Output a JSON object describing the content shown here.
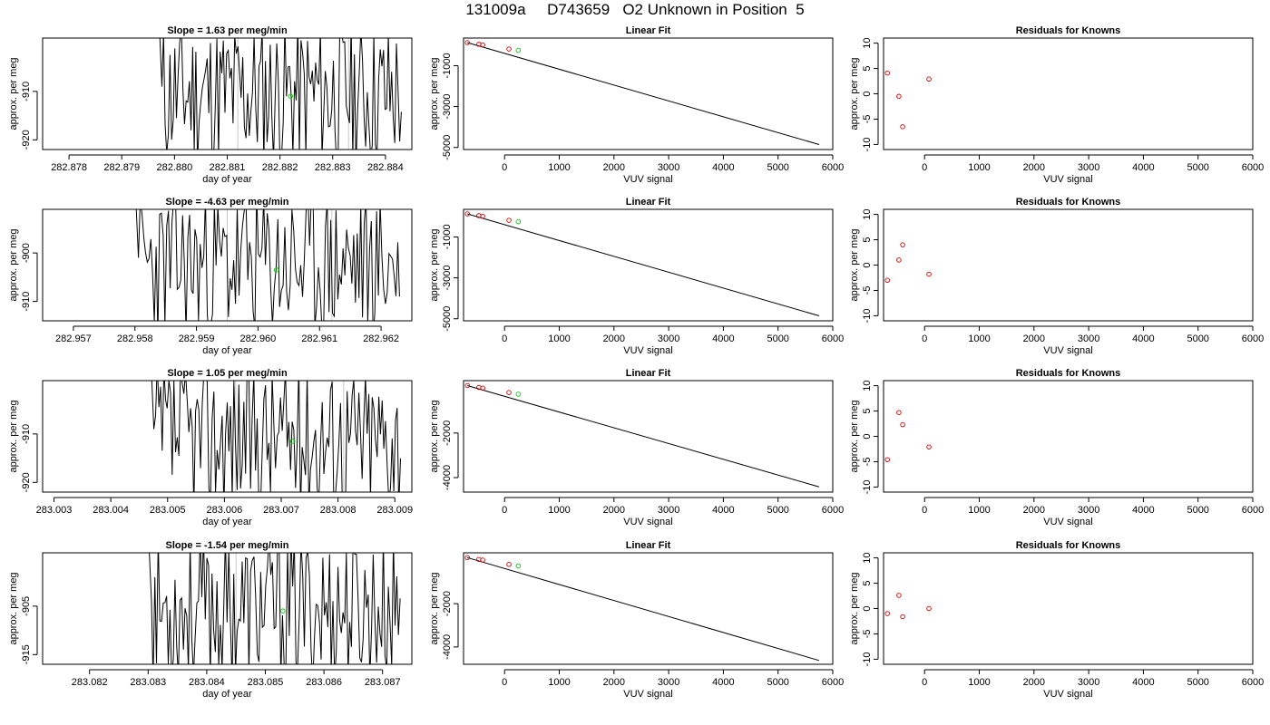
{
  "figure_title": "131009a     D743659   O2 Unknown in Position  5",
  "chart_data": [
    {
      "type": "line",
      "title": "Slope =  1.63  per meg/min",
      "xlabel": "day of year",
      "ylabel": "approx. per meg",
      "xlim": [
        282.8775,
        282.8845
      ],
      "ylim": [
        -922,
        -899
      ],
      "xticks": [
        282.878,
        282.879,
        282.88,
        282.881,
        282.882,
        282.883,
        282.884
      ],
      "xtick_labels": [
        "282.878",
        "282.879",
        "282.880",
        "282.881",
        "282.882",
        "282.883",
        "282.884"
      ],
      "yticks": [
        -910,
        -920
      ],
      "ytick_labels": [
        "-910",
        "-920"
      ],
      "data_start": 282.8797,
      "data_end": 282.8843,
      "mean_point": {
        "x": 282.8822,
        "y": -911
      },
      "series_color": "#000000",
      "mean_color": "#00cc00",
      "vlines": [
        282.8812,
        282.8833
      ],
      "seed": 11,
      "band": [
        -922,
        -899
      ]
    },
    {
      "type": "scatter",
      "title": "Linear Fit",
      "xlabel": "VUV signal",
      "ylabel": "approx. per meg",
      "xlim": [
        -750,
        6000
      ],
      "ylim": [
        -5100,
        350
      ],
      "xticks": [
        0,
        1000,
        2000,
        3000,
        4000,
        5000,
        6000
      ],
      "xtick_labels": [
        "0",
        "1000",
        "2000",
        "3000",
        "4000",
        "5000",
        "6000"
      ],
      "yticks": [
        -1000,
        -3000,
        -5000
      ],
      "ytick_labels": [
        "-1000",
        "-3000",
        "-5000"
      ],
      "points": [
        {
          "x": -680,
          "y": 127
        },
        {
          "x": -470,
          "y": 43
        },
        {
          "x": -400,
          "y": 14
        },
        {
          "x": 80,
          "y": -185
        },
        {
          "x": 250,
          "y": -255
        }
      ],
      "point_colors": [
        "#cc0000",
        "#cc0000",
        "#cc0000",
        "#cc0000",
        "#00cc00"
      ],
      "fit_line": {
        "x1": -680,
        "y1": 127,
        "x2": 5750,
        "y2": -4855
      }
    },
    {
      "type": "scatter",
      "title": "Residuals for Knowns",
      "xlabel": "VUV signal",
      "ylabel": "approx. per meg",
      "xlim": [
        -750,
        6000
      ],
      "ylim": [
        -11,
        11
      ],
      "xticks": [
        0,
        1000,
        2000,
        3000,
        4000,
        5000,
        6000
      ],
      "xtick_labels": [
        "0",
        "1000",
        "2000",
        "3000",
        "4000",
        "5000",
        "6000"
      ],
      "yticks": [
        10,
        5,
        0,
        -5,
        -10
      ],
      "ytick_labels": [
        "10",
        "5",
        "0",
        "-5",
        "-10"
      ],
      "points": [
        {
          "x": -680,
          "y": 4.1
        },
        {
          "x": -470,
          "y": -0.5
        },
        {
          "x": -400,
          "y": -6.5
        },
        {
          "x": 80,
          "y": 2.9
        }
      ],
      "point_colors": [
        "#cc0000",
        "#cc0000",
        "#cc0000",
        "#cc0000"
      ]
    },
    {
      "type": "line",
      "title": "Slope =  -4.63  per meg/min",
      "xlabel": "day of year",
      "ylabel": "approx. per meg",
      "xlim": [
        282.9565,
        282.9625
      ],
      "ylim": [
        -914,
        -891
      ],
      "xticks": [
        282.957,
        282.958,
        282.959,
        282.96,
        282.961,
        282.962
      ],
      "xtick_labels": [
        "282.957",
        "282.958",
        "282.959",
        "282.960",
        "282.961",
        "282.962"
      ],
      "yticks": [
        -900,
        -910
      ],
      "ytick_labels": [
        "-900",
        "-910"
      ],
      "data_start": 282.958,
      "data_end": 282.9623,
      "mean_point": {
        "x": 282.9603,
        "y": -903.5
      },
      "series_color": "#000000",
      "mean_color": "#00cc00",
      "vlines": [
        282.9595,
        282.9612
      ],
      "seed": 23,
      "band": [
        -914,
        -891
      ]
    },
    {
      "type": "scatter",
      "title": "Linear Fit",
      "xlabel": "VUV signal",
      "ylabel": "approx. per meg",
      "xlim": [
        -750,
        6000
      ],
      "ylim": [
        -5100,
        350
      ],
      "xticks": [
        0,
        1000,
        2000,
        3000,
        4000,
        5000,
        6000
      ],
      "xtick_labels": [
        "0",
        "1000",
        "2000",
        "3000",
        "4000",
        "5000",
        "6000"
      ],
      "yticks": [
        -1000,
        -3000,
        -5000
      ],
      "ytick_labels": [
        "-1000",
        "-3000",
        "-5000"
      ],
      "points": [
        {
          "x": -680,
          "y": 127
        },
        {
          "x": -470,
          "y": 43
        },
        {
          "x": -400,
          "y": 14
        },
        {
          "x": 80,
          "y": -185
        },
        {
          "x": 250,
          "y": -255
        }
      ],
      "point_colors": [
        "#cc0000",
        "#cc0000",
        "#cc0000",
        "#cc0000",
        "#00cc00"
      ],
      "fit_line": {
        "x1": -680,
        "y1": 127,
        "x2": 5750,
        "y2": -4855
      }
    },
    {
      "type": "scatter",
      "title": "Residuals for Knowns",
      "xlabel": "VUV signal",
      "ylabel": "approx. per meg",
      "xlim": [
        -750,
        6000
      ],
      "ylim": [
        -11,
        11
      ],
      "xticks": [
        0,
        1000,
        2000,
        3000,
        4000,
        5000,
        6000
      ],
      "xtick_labels": [
        "0",
        "1000",
        "2000",
        "3000",
        "4000",
        "5000",
        "6000"
      ],
      "yticks": [
        10,
        5,
        0,
        -5,
        -10
      ],
      "ytick_labels": [
        "10",
        "5",
        "0",
        "-5",
        "-10"
      ],
      "points": [
        {
          "x": -680,
          "y": -3.0
        },
        {
          "x": -470,
          "y": 1.0
        },
        {
          "x": -400,
          "y": 4.0
        },
        {
          "x": 80,
          "y": -1.8
        }
      ],
      "point_colors": [
        "#cc0000",
        "#cc0000",
        "#cc0000",
        "#cc0000"
      ]
    },
    {
      "type": "line",
      "title": "Slope =  1.05  per meg/min",
      "xlabel": "day of year",
      "ylabel": "approx. per meg",
      "xlim": [
        283.0028,
        283.0093
      ],
      "ylim": [
        -922,
        -899
      ],
      "xticks": [
        283.003,
        283.004,
        283.005,
        283.006,
        283.007,
        283.008,
        283.009
      ],
      "xtick_labels": [
        "283.003",
        "283.004",
        "283.005",
        "283.006",
        "283.007",
        "283.008",
        "283.009"
      ],
      "yticks": [
        -910,
        -920
      ],
      "ytick_labels": [
        "-910",
        "-920"
      ],
      "data_start": 283.0047,
      "data_end": 283.0091,
      "mean_point": {
        "x": 283.0072,
        "y": -911.5
      },
      "series_color": "#000000",
      "mean_color": "#00cc00",
      "vlines": [
        283.0062,
        283.0081
      ],
      "seed": 37,
      "band": [
        -922,
        -899
      ]
    },
    {
      "type": "scatter",
      "title": "Linear Fit",
      "xlabel": "VUV signal",
      "ylabel": "approx. per meg",
      "xlim": [
        -750,
        6000
      ],
      "ylim": [
        -4650,
        350
      ],
      "xticks": [
        0,
        1000,
        2000,
        3000,
        4000,
        5000,
        6000
      ],
      "xtick_labels": [
        "0",
        "1000",
        "2000",
        "3000",
        "4000",
        "5000",
        "6000"
      ],
      "yticks": [
        -2000,
        -4000
      ],
      "ytick_labels": [
        "-2000",
        "-4000"
      ],
      "points": [
        {
          "x": -680,
          "y": 127
        },
        {
          "x": -470,
          "y": 43
        },
        {
          "x": -400,
          "y": 14
        },
        {
          "x": 80,
          "y": -185
        },
        {
          "x": 250,
          "y": -255
        }
      ],
      "point_colors": [
        "#cc0000",
        "#cc0000",
        "#cc0000",
        "#cc0000",
        "#00cc00"
      ],
      "fit_line": {
        "x1": -680,
        "y1": 127,
        "x2": 5750,
        "y2": -4415
      }
    },
    {
      "type": "scatter",
      "title": "Residuals for Knowns",
      "xlabel": "VUV signal",
      "ylabel": "approx. per meg",
      "xlim": [
        -750,
        6000
      ],
      "ylim": [
        -11,
        11
      ],
      "xticks": [
        0,
        1000,
        2000,
        3000,
        4000,
        5000,
        6000
      ],
      "xtick_labels": [
        "0",
        "1000",
        "2000",
        "3000",
        "4000",
        "5000",
        "6000"
      ],
      "yticks": [
        10,
        5,
        0,
        -5,
        -10
      ],
      "ytick_labels": [
        "10",
        "5",
        "0",
        "-5",
        "-10"
      ],
      "points": [
        {
          "x": -680,
          "y": -4.6
        },
        {
          "x": -470,
          "y": 4.7
        },
        {
          "x": -400,
          "y": 2.3
        },
        {
          "x": 80,
          "y": -2.1
        }
      ],
      "point_colors": [
        "#cc0000",
        "#cc0000",
        "#cc0000",
        "#cc0000"
      ]
    },
    {
      "type": "line",
      "title": "Slope =  -1.54  per meg/min",
      "xlabel": "day of year",
      "ylabel": "approx. per meg",
      "xlim": [
        283.0812,
        283.0875
      ],
      "ylim": [
        -917,
        -894
      ],
      "xticks": [
        283.082,
        283.083,
        283.084,
        283.085,
        283.086,
        283.087
      ],
      "xtick_labels": [
        "283.082",
        "283.083",
        "283.084",
        "283.085",
        "283.086",
        "283.087"
      ],
      "yticks": [
        -905,
        -915
      ],
      "ytick_labels": [
        "-905",
        "-915"
      ],
      "data_start": 283.083,
      "data_end": 283.0873,
      "mean_point": {
        "x": 283.0853,
        "y": -906
      },
      "series_color": "#000000",
      "mean_color": "#00cc00",
      "vlines": [
        283.0845
      ],
      "seed": 53,
      "band": [
        -917,
        -894
      ]
    },
    {
      "type": "scatter",
      "title": "Linear Fit",
      "xlabel": "VUV signal",
      "ylabel": "approx. per meg",
      "xlim": [
        -750,
        6000
      ],
      "ylim": [
        -4800,
        350
      ],
      "xticks": [
        0,
        1000,
        2000,
        3000,
        4000,
        5000,
        6000
      ],
      "xtick_labels": [
        "0",
        "1000",
        "2000",
        "3000",
        "4000",
        "5000",
        "6000"
      ],
      "yticks": [
        -2000,
        -4000
      ],
      "ytick_labels": [
        "-2000",
        "-4000"
      ],
      "points": [
        {
          "x": -680,
          "y": 127
        },
        {
          "x": -470,
          "y": 43
        },
        {
          "x": -400,
          "y": 14
        },
        {
          "x": 80,
          "y": -185
        },
        {
          "x": 250,
          "y": -255
        }
      ],
      "point_colors": [
        "#cc0000",
        "#cc0000",
        "#cc0000",
        "#cc0000",
        "#00cc00"
      ],
      "fit_line": {
        "x1": -680,
        "y1": 127,
        "x2": 5750,
        "y2": -4625
      }
    },
    {
      "type": "scatter",
      "title": "Residuals for Knowns",
      "xlabel": "VUV signal",
      "ylabel": "approx. per meg",
      "xlim": [
        -750,
        6000
      ],
      "ylim": [
        -11,
        11
      ],
      "xticks": [
        0,
        1000,
        2000,
        3000,
        4000,
        5000,
        6000
      ],
      "xtick_labels": [
        "0",
        "1000",
        "2000",
        "3000",
        "4000",
        "5000",
        "6000"
      ],
      "yticks": [
        10,
        5,
        0,
        -5,
        -10
      ],
      "ytick_labels": [
        "10",
        "5",
        "0",
        "-5",
        "-10"
      ],
      "points": [
        {
          "x": -680,
          "y": -1.0
        },
        {
          "x": -470,
          "y": 2.6
        },
        {
          "x": -400,
          "y": -1.6
        },
        {
          "x": 80,
          "y": 0.0
        }
      ],
      "point_colors": [
        "#cc0000",
        "#cc0000",
        "#cc0000",
        "#cc0000"
      ]
    }
  ]
}
